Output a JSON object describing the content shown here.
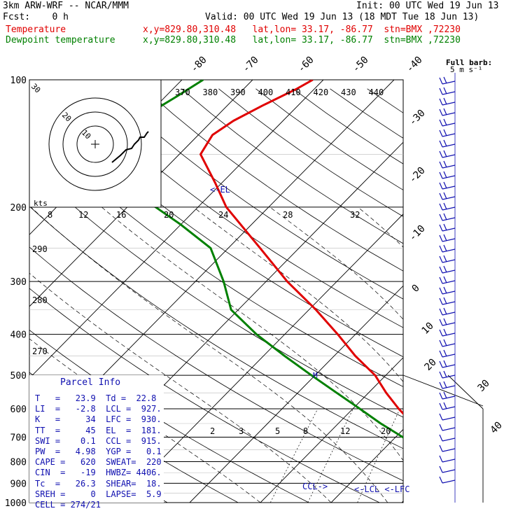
{
  "header": {
    "model": "3km ARW-WRF -- NCAR/MMM",
    "init": "Init: 00 UTC Wed 19 Jun 13",
    "fcst": "Fcst:    0 h",
    "valid": "Valid: 00 UTC Wed 19 Jun 13 (18 MDT Tue 18 Jun 13)"
  },
  "legend": [
    {
      "label": "Temperature",
      "loc": "x,y=829.80,310.48   lat,lon= 33.17, -86.77  stn=BMX ,72230",
      "color": "#e00000"
    },
    {
      "label": "Dewpoint temperature",
      "loc": "x,y=829.80,310.48   lat,lon= 33.17, -86.77  stn=BMX ,72230",
      "color": "#008000"
    }
  ],
  "barb_label": {
    "line1": "Full barb:",
    "line2": "5 m s⁻¹"
  },
  "el_marker": "<-EL",
  "ccl_marker": "CCL->",
  "lcl_lfc_marker": "<-LCL <-LFC",
  "m_marker": "M",
  "hodo": {
    "kts": "kts",
    "rings": [
      "10",
      "20",
      "30"
    ]
  },
  "parcel": {
    "title": "Parcel Info",
    "rows": [
      "T   =   23.9  Td =  22.8",
      "LI  =   -2.8  LCL =  927.",
      "K   =     34  LFC =  930.",
      "TT  =     45  EL  =  181.",
      "SWI =    0.1  CCL =  915.",
      "PW  =   4.98  YGP =   0.1",
      "CAPE =   620  SWEAT=  220",
      "CIN  =   -19  HWBZ= 4406.",
      "Tc  =   26.3  SHEAR=  18.",
      "SREH =     0  LAPSE=  5.9",
      "CELL = 274/21"
    ]
  },
  "chart_data": {
    "type": "line",
    "title": "",
    "pressure_levels": [
      100,
      200,
      300,
      400,
      500,
      600,
      700,
      800,
      900,
      1000
    ],
    "pressure_labels": [
      "100",
      "200",
      "300",
      "400",
      "500",
      "600",
      "700",
      "800",
      "900",
      "1000"
    ],
    "isotherm_labels": [
      "-80",
      "-70",
      "-60",
      "-50",
      "-40",
      "-30",
      "-20",
      "-10",
      "0",
      "10",
      "20",
      "30",
      "40"
    ],
    "theta_labels": [
      "370",
      "380",
      "390",
      "400",
      "410",
      "420",
      "430",
      "440"
    ],
    "theta_low_labels": [
      "290",
      "280",
      "270"
    ],
    "hodo_speed_labels": [
      "8",
      "12",
      "16",
      "20",
      "24",
      "28",
      "32"
    ],
    "mixing_ratio_labels": [
      "2",
      "3",
      "5",
      "8",
      "12",
      "20"
    ],
    "series": [
      {
        "name": "Temperature",
        "color": "#e00000",
        "points": [
          [
            995,
            23.9
          ],
          [
            975,
            22.5
          ],
          [
            950,
            20.5
          ],
          [
            925,
            19.0
          ],
          [
            900,
            17.5
          ],
          [
            850,
            14.0
          ],
          [
            800,
            10.5
          ],
          [
            750,
            7.5
          ],
          [
            700,
            4.5
          ],
          [
            650,
            0.5
          ],
          [
            600,
            -3.5
          ],
          [
            550,
            -7.5
          ],
          [
            500,
            -11.5
          ],
          [
            450,
            -17.0
          ],
          [
            400,
            -22.5
          ],
          [
            350,
            -29.0
          ],
          [
            300,
            -37.0
          ],
          [
            250,
            -45.5
          ],
          [
            200,
            -56.0
          ],
          [
            175,
            -61.0
          ],
          [
            150,
            -67.0
          ],
          [
            135,
            -68.0
          ],
          [
            125,
            -67.0
          ],
          [
            115,
            -65.0
          ],
          [
            105,
            -62.5
          ],
          [
            100,
            -61.5
          ]
        ]
      },
      {
        "name": "Dewpoint temperature",
        "color": "#008000",
        "points": [
          [
            995,
            22.8
          ],
          [
            975,
            20.5
          ],
          [
            950,
            19.5
          ],
          [
            925,
            17.5
          ],
          [
            900,
            15.5
          ],
          [
            850,
            11.5
          ],
          [
            800,
            9.0
          ],
          [
            750,
            5.0
          ],
          [
            700,
            1.0
          ],
          [
            650,
            -4.0
          ],
          [
            600,
            -9.0
          ],
          [
            550,
            -14.5
          ],
          [
            500,
            -20.5
          ],
          [
            450,
            -27.0
          ],
          [
            400,
            -34.0
          ],
          [
            350,
            -41.0
          ],
          [
            300,
            -46.0
          ],
          [
            250,
            -52.5
          ],
          [
            220,
            -60.0
          ],
          [
            200,
            -66.0
          ],
          [
            180,
            -74.0
          ],
          [
            160,
            -78.0
          ],
          [
            140,
            -80.0
          ],
          [
            120,
            -80.0
          ],
          [
            110,
            -78.5
          ],
          [
            100,
            -77.0
          ]
        ]
      }
    ],
    "ylim": [
      1000,
      100
    ],
    "xlim": [
      -40,
      40
    ]
  },
  "colors": {
    "temperature": "#e00000",
    "dewpoint": "#008000",
    "barb": "#1010b0",
    "grid": "#000000"
  }
}
